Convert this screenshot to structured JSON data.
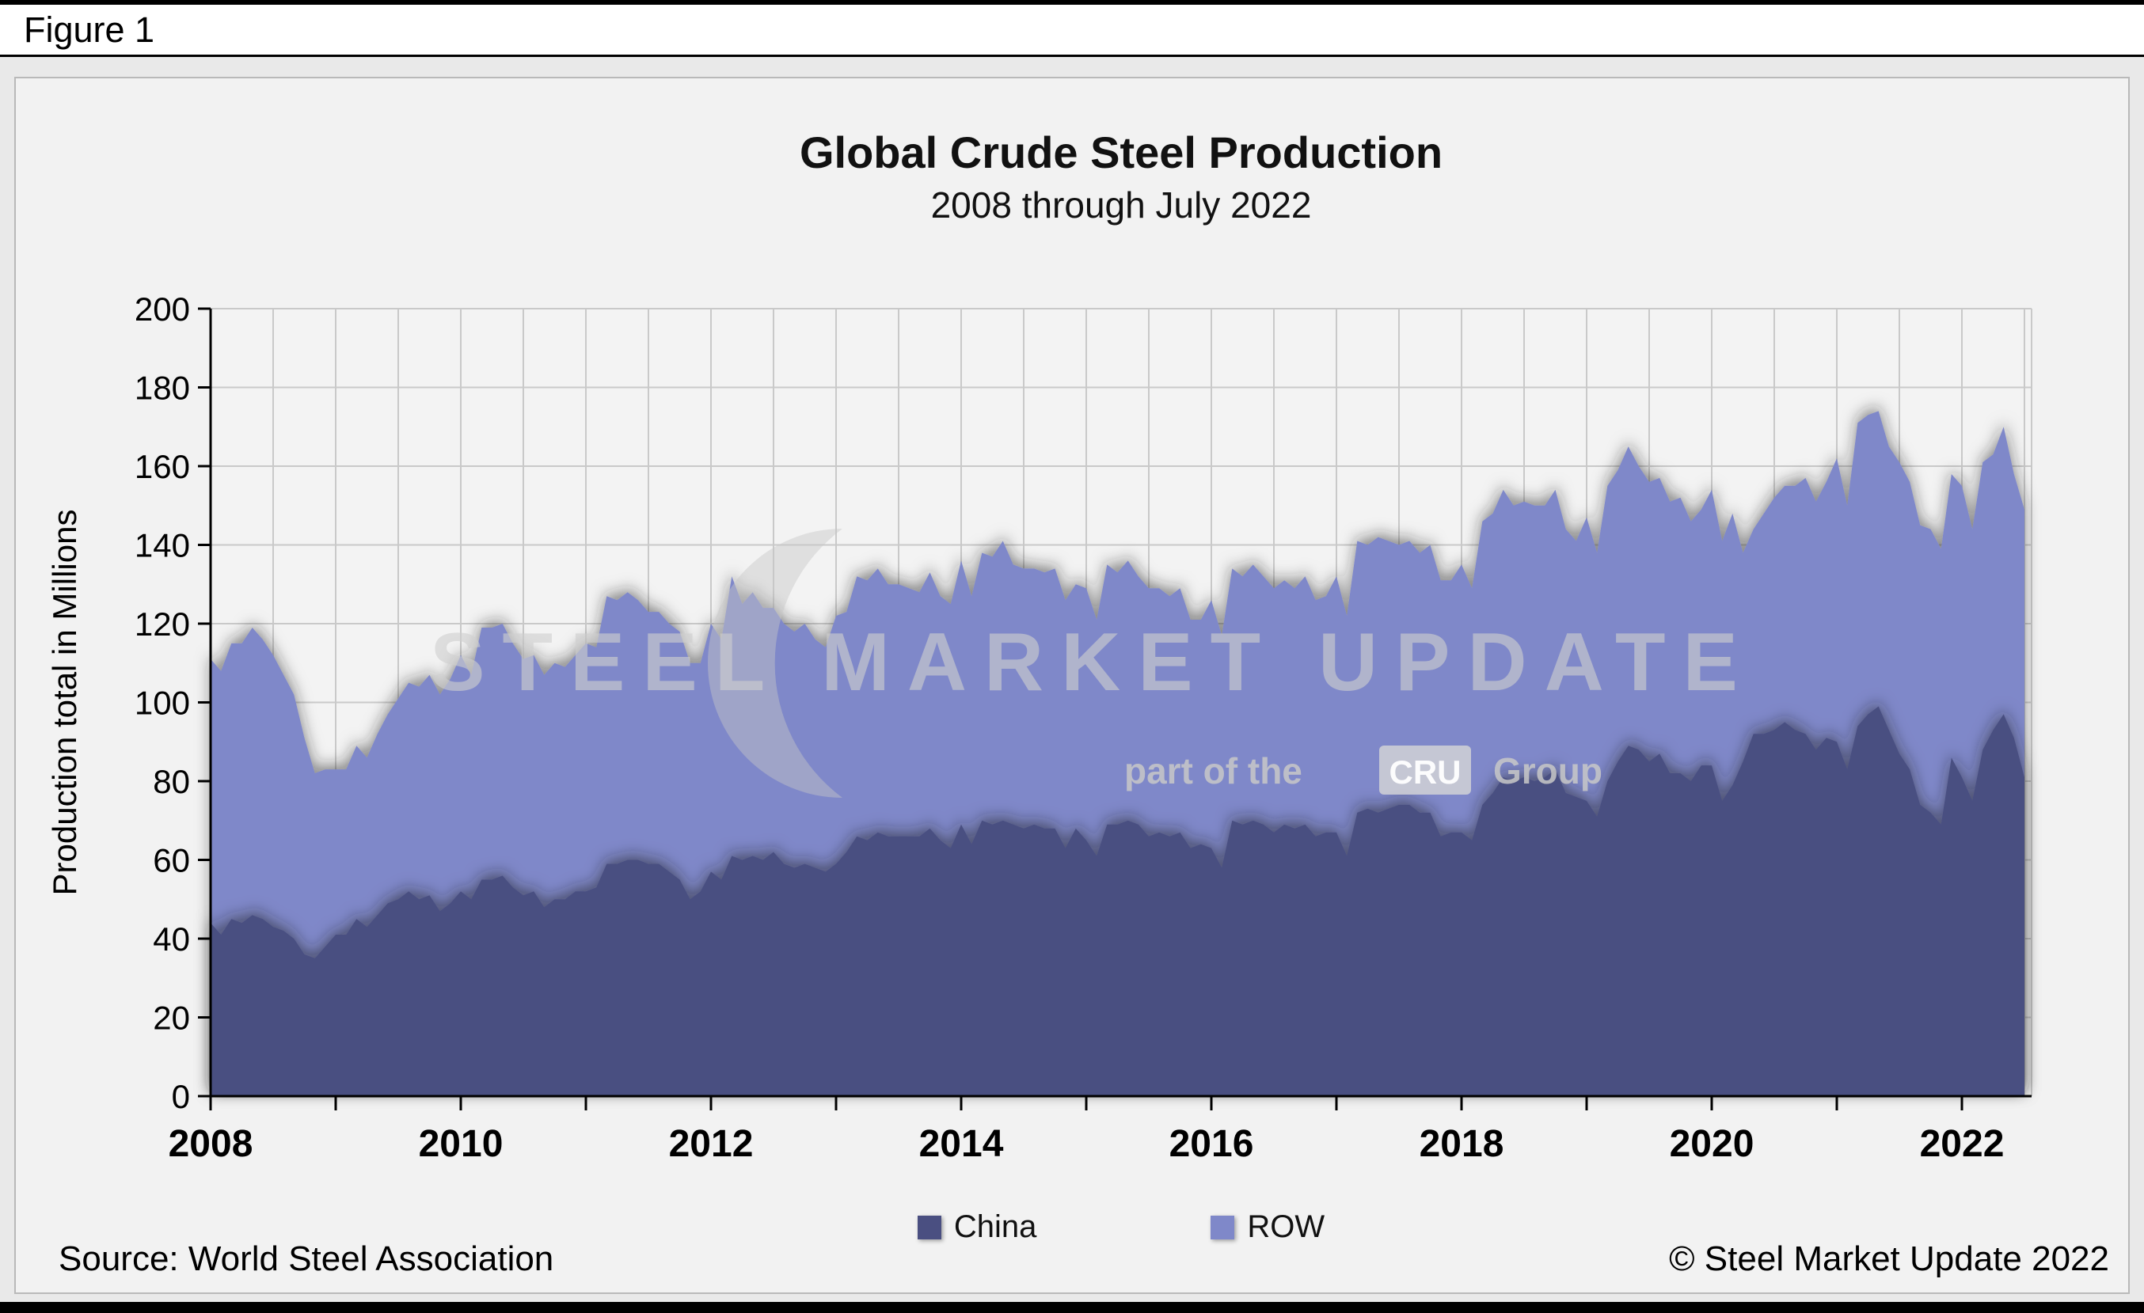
{
  "figure_label": "Figure 1",
  "chart_data": {
    "type": "area",
    "stacked": true,
    "title": "Global Crude Steel Production",
    "subtitle": "2008 through July 2022",
    "xlabel": "",
    "ylabel": "Production total in Millions",
    "x_start": "2008-01",
    "x_end": "2022-07",
    "x_frequency": "monthly",
    "x_tick_labels": [
      "2008",
      "2010",
      "2012",
      "2014",
      "2016",
      "2018",
      "2020",
      "2022"
    ],
    "ylim": [
      0,
      200
    ],
    "y_tick_step": 20,
    "grid": true,
    "legend_position": "bottom",
    "series": [
      {
        "name": "China",
        "color": "#4a4f81",
        "values": [
          44,
          41,
          45,
          44,
          46,
          45,
          43,
          42,
          40,
          36,
          35,
          38,
          41,
          41,
          45,
          43,
          46,
          49,
          50,
          52,
          50,
          51,
          47,
          49,
          52,
          50,
          55,
          55,
          56,
          53,
          51,
          52,
          48,
          50,
          50,
          52,
          52,
          53,
          59,
          59,
          60,
          60,
          59,
          59,
          57,
          55,
          50,
          52,
          57,
          55,
          61,
          60,
          61,
          60,
          62,
          59,
          58,
          59,
          58,
          57,
          59,
          62,
          66,
          65,
          67,
          66,
          66,
          66,
          66,
          68,
          65,
          63,
          69,
          64,
          70,
          69,
          70,
          69,
          68,
          69,
          68,
          68,
          63,
          68,
          65,
          61,
          69,
          69,
          70,
          69,
          66,
          67,
          66,
          67,
          63,
          64,
          63,
          58,
          70,
          69,
          70,
          69,
          67,
          69,
          68,
          69,
          66,
          67,
          67,
          61,
          72,
          73,
          72,
          73,
          74,
          74,
          72,
          72,
          66,
          67,
          67,
          65,
          74,
          77,
          81,
          80,
          81,
          80,
          81,
          83,
          77,
          76,
          75,
          71,
          80,
          85,
          89,
          88,
          85,
          87,
          82,
          82,
          80,
          84,
          84,
          75,
          79,
          85,
          92,
          92,
          93,
          95,
          93,
          92,
          88,
          91,
          90,
          83,
          94,
          97,
          99,
          93,
          87,
          83,
          74,
          72,
          69,
          86,
          81,
          75,
          88,
          93,
          97,
          91,
          81
        ]
      },
      {
        "name": "ROW",
        "color": "#7f88c9",
        "values": [
          67,
          67,
          70,
          71,
          73,
          71,
          69,
          65,
          62,
          55,
          47,
          45,
          42,
          42,
          44,
          43,
          46,
          48,
          51,
          53,
          54,
          56,
          55,
          57,
          60,
          57,
          64,
          64,
          64,
          62,
          60,
          60,
          59,
          60,
          59,
          60,
          63,
          61,
          68,
          67,
          68,
          66,
          64,
          64,
          63,
          63,
          60,
          58,
          63,
          61,
          71,
          65,
          67,
          64,
          62,
          61,
          60,
          61,
          58,
          57,
          63,
          61,
          66,
          66,
          67,
          64,
          64,
          63,
          62,
          65,
          62,
          62,
          67,
          63,
          68,
          68,
          71,
          66,
          66,
          65,
          65,
          66,
          63,
          62,
          64,
          60,
          66,
          64,
          66,
          63,
          63,
          62,
          61,
          62,
          58,
          57,
          63,
          59,
          64,
          63,
          65,
          63,
          62,
          62,
          61,
          63,
          60,
          60,
          65,
          61,
          69,
          67,
          70,
          68,
          66,
          67,
          66,
          68,
          65,
          64,
          68,
          64,
          72,
          71,
          73,
          70,
          70,
          70,
          69,
          71,
          67,
          65,
          72,
          67,
          75,
          74,
          76,
          72,
          71,
          70,
          69,
          70,
          66,
          65,
          70,
          66,
          69,
          53,
          52,
          56,
          59,
          60,
          62,
          65,
          63,
          65,
          72,
          67,
          77,
          76,
          75,
          72,
          74,
          73,
          71,
          72,
          70,
          72,
          74,
          69,
          73,
          70,
          73,
          67,
          68
        ]
      }
    ]
  },
  "watermark": {
    "line1": "STEEL MARKET UPDATE",
    "line2_prefix": "part of the",
    "line2_box": "CRU",
    "line2_suffix": "Group"
  },
  "footer": {
    "source": "Source: World Steel Association",
    "copyright": "© Steel Market Update 2022"
  }
}
